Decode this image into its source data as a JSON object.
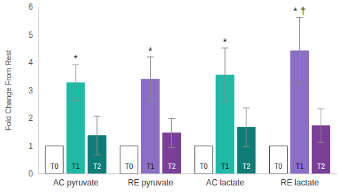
{
  "chart_data": {
    "type": "bar",
    "categories": [
      "AC pyruvate",
      "RE pyruvate",
      "AC lactate",
      "RE lactate"
    ],
    "y_label": "Fold Change From Rest",
    "ylim": [
      0,
      6
    ],
    "yticks": [
      0,
      1,
      2,
      3,
      4,
      5,
      6
    ],
    "grid": false,
    "series": [
      {
        "name": "T0",
        "colors": [
          "#ffffff",
          "#ffffff",
          "#ffffff",
          "#ffffff"
        ],
        "values": [
          1,
          1,
          1,
          1
        ]
      },
      {
        "name": "T1",
        "colors": [
          "#20b9a5",
          "#8a6fc4",
          "#20b9a5",
          "#8a6fc4"
        ],
        "values": [
          3.27,
          3.4,
          3.55,
          4.42
        ],
        "errors": [
          0.65,
          0.8,
          0.97,
          1.2
        ]
      },
      {
        "name": "T2",
        "colors": [
          "#0e7d78",
          "#7b3f98",
          "#0e7d78",
          "#7b3f98"
        ],
        "values": [
          1.37,
          1.47,
          1.67,
          1.73
        ],
        "errors": [
          0.7,
          0.52,
          0.7,
          0.6
        ]
      }
    ],
    "annotations": [
      {
        "category": "AC pyruvate",
        "series": "T1",
        "text": "*"
      },
      {
        "category": "RE pyruvate",
        "series": "T1",
        "text": "*"
      },
      {
        "category": "AC lactate",
        "series": "T1",
        "text": "*"
      },
      {
        "category": "RE lactate",
        "series": "T1",
        "text": "* †"
      }
    ]
  }
}
